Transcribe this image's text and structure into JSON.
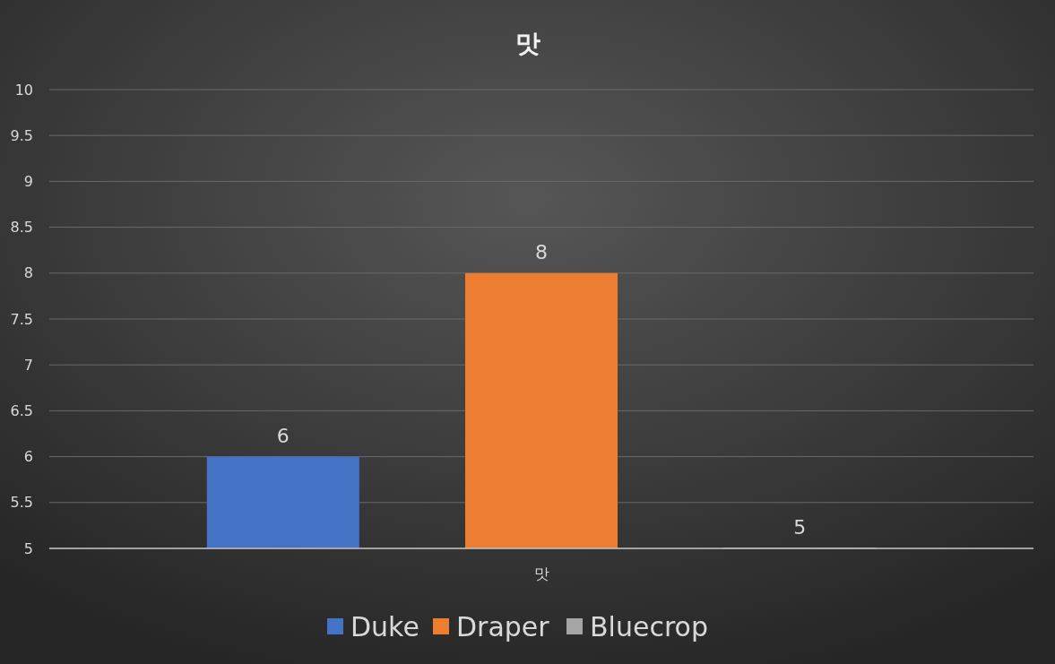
{
  "chart_data": {
    "type": "bar",
    "title": "맛",
    "categories": [
      "맛"
    ],
    "series": [
      {
        "name": "Duke",
        "color": "#4472c4",
        "values": [
          6
        ]
      },
      {
        "name": "Draper",
        "color": "#ed7d31",
        "values": [
          8
        ]
      },
      {
        "name": "Bluecrop",
        "color": "#a5a5a5",
        "values": [
          5
        ]
      }
    ],
    "ylim": [
      5,
      10
    ],
    "yticks": [
      5,
      5.5,
      6,
      6.5,
      7,
      7.5,
      8,
      8.5,
      9,
      9.5,
      10
    ],
    "grid": "y",
    "legend": "bottom",
    "data_labels": true
  }
}
